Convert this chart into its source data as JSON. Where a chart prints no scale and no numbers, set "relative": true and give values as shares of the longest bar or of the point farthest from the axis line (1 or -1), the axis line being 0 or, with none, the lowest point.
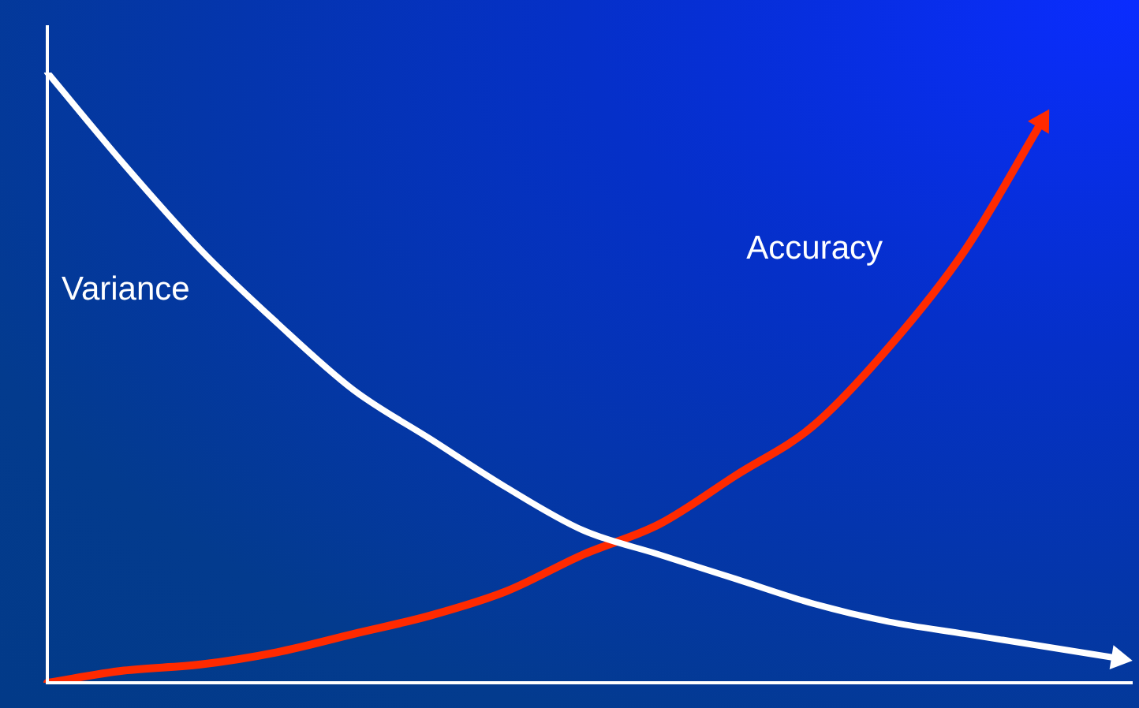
{
  "chart_data": {
    "type": "line",
    "relative": true,
    "legend": false,
    "marker": "none",
    "line_style": "solid",
    "categories": [
      null,
      null,
      null,
      null,
      null,
      null,
      null,
      null,
      null,
      null,
      null,
      null,
      null,
      null,
      null
    ],
    "series": [
      {
        "name": "Variance",
        "color": "#ffffff",
        "values": [
          1,
          0.85,
          0.71,
          0.59,
          0.48,
          0.4,
          0.32,
          0.25,
          0.21,
          0.17,
          0.13,
          0.1,
          0.08,
          0.06,
          0.04
        ]
      },
      {
        "name": "Accuracy",
        "color": "#ff2a00",
        "values": [
          0,
          0.02,
          0.03,
          0.05,
          0.08,
          0.11,
          0.15,
          0.21,
          0.26,
          0.34,
          0.42,
          0.55,
          0.71,
          0.92,
          null
        ]
      }
    ]
  }
}
